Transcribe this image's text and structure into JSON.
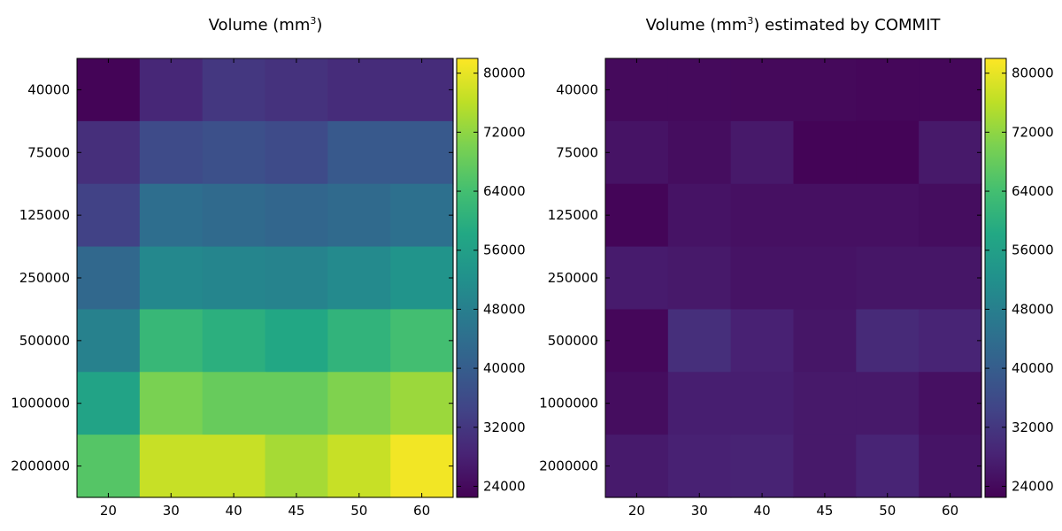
{
  "chart_data": [
    {
      "type": "heatmap",
      "title": "Volume (mm",
      "title_sup": "3",
      "title_suffix": ")",
      "x_categories": [
        "20",
        "30",
        "40",
        "45",
        "50",
        "60"
      ],
      "y_categories": [
        "40000",
        "75000",
        "125000",
        "250000",
        "500000",
        "1000000",
        "2000000"
      ],
      "values": [
        [
          23000,
          29000,
          32000,
          31000,
          30000,
          30000
        ],
        [
          30500,
          36000,
          37000,
          36000,
          39000,
          39000
        ],
        [
          34000,
          44000,
          43000,
          42000,
          43000,
          44500
        ],
        [
          42500,
          50000,
          49500,
          49000,
          50500,
          53000
        ],
        [
          48500,
          62000,
          60000,
          58000,
          61000,
          64000
        ],
        [
          57000,
          70000,
          68000,
          68000,
          70500,
          73000
        ],
        [
          66000,
          77000,
          77000,
          74000,
          77000,
          81000
        ]
      ],
      "colorbar": {
        "min": 22500,
        "max": 82000,
        "ticks": [
          "80000",
          "72000",
          "64000",
          "56000",
          "48000",
          "40000",
          "32000",
          "24000"
        ]
      }
    },
    {
      "type": "heatmap",
      "title": "Volume (mm",
      "title_sup": "3",
      "title_suffix": ") estimated by COMMIT",
      "x_categories": [
        "20",
        "30",
        "40",
        "45",
        "50",
        "60"
      ],
      "y_categories": [
        "40000",
        "75000",
        "125000",
        "250000",
        "500000",
        "1000000",
        "2000000"
      ],
      "values": [
        [
          24000,
          24000,
          23800,
          23800,
          23500,
          23500
        ],
        [
          25500,
          24500,
          26500,
          23000,
          23000,
          26500
        ],
        [
          23200,
          25500,
          25000,
          25000,
          25000,
          24500
        ],
        [
          27000,
          26500,
          25500,
          25500,
          26000,
          26000
        ],
        [
          23500,
          30500,
          28000,
          26000,
          29500,
          28500
        ],
        [
          24500,
          27500,
          27500,
          26500,
          26500,
          25000
        ],
        [
          26800,
          28000,
          28200,
          26500,
          28500,
          25800
        ]
      ],
      "colorbar": {
        "min": 22500,
        "max": 82000,
        "ticks": [
          "80000",
          "72000",
          "64000",
          "56000",
          "48000",
          "40000",
          "32000",
          "24000"
        ]
      }
    }
  ]
}
